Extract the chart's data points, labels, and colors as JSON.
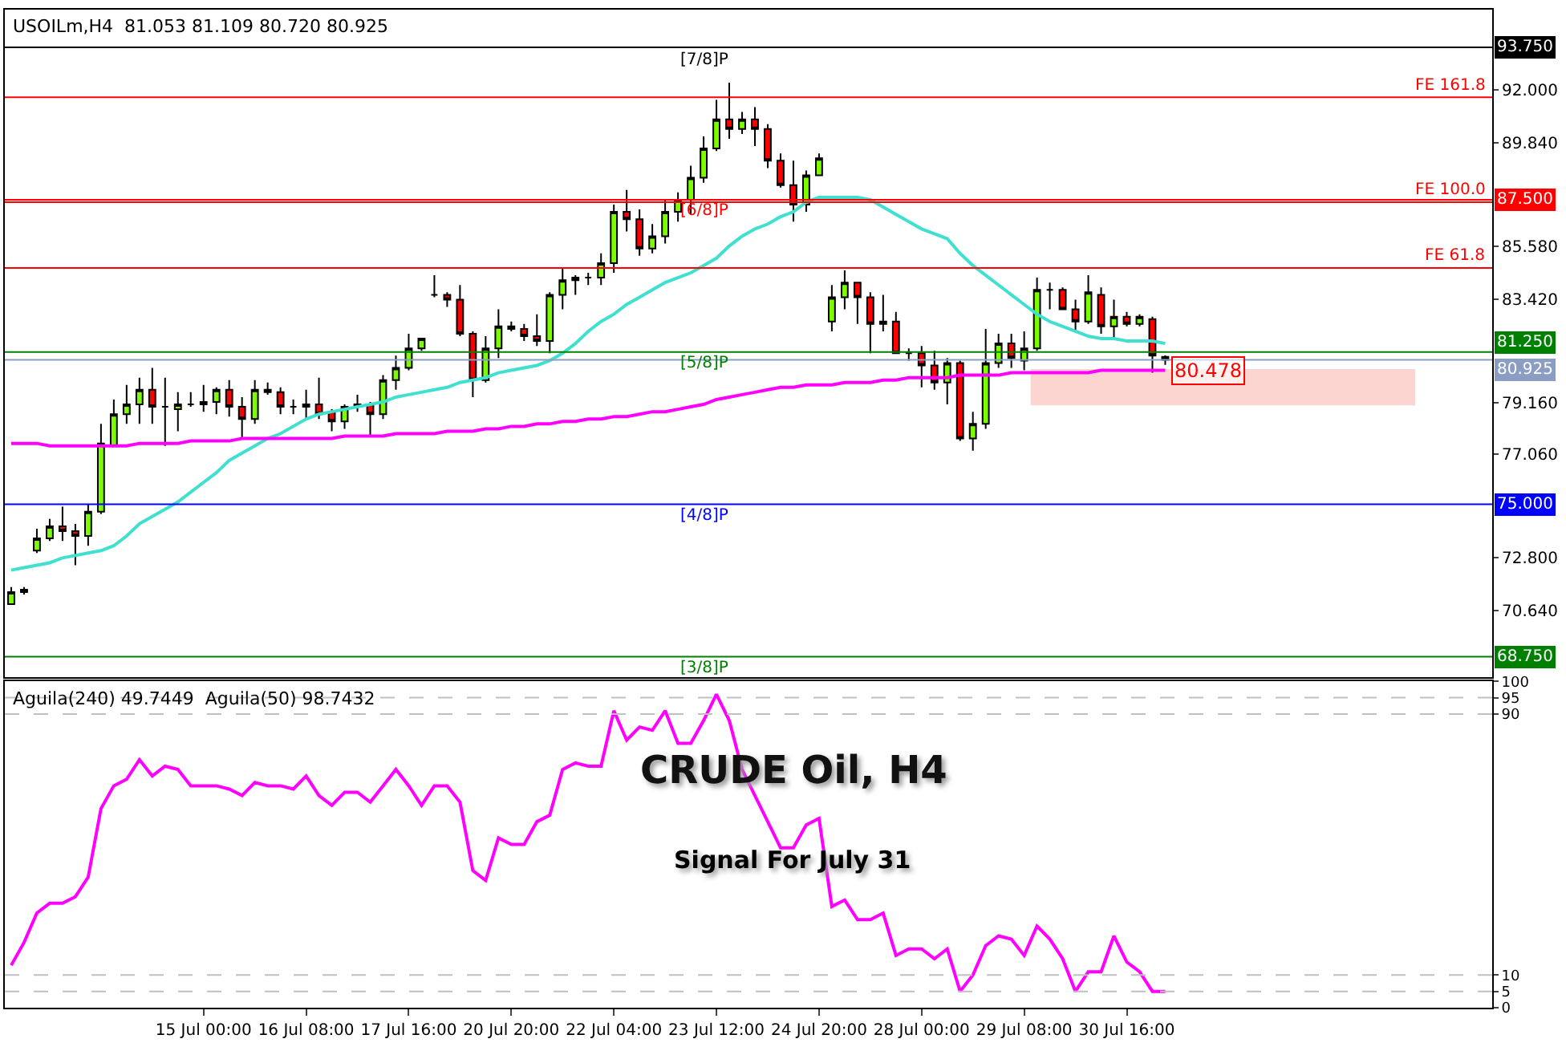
{
  "chart_data": [
    {
      "type": "candlestick",
      "categories": [
        null,
        null,
        null,
        null,
        null,
        null,
        null,
        null,
        null,
        null,
        null,
        null,
        null,
        null,
        null,
        null,
        null,
        null,
        null,
        null,
        null,
        null,
        null,
        null,
        null,
        null,
        null,
        null,
        null,
        null,
        null,
        null,
        null,
        null,
        null,
        null,
        null,
        null,
        null,
        null,
        null,
        null,
        null,
        null,
        null,
        null,
        null,
        null,
        null,
        null,
        null,
        null,
        null,
        null,
        null,
        null,
        null,
        null,
        null,
        null,
        null,
        null,
        null,
        null,
        null,
        null,
        null,
        null,
        null,
        null,
        null,
        null,
        null,
        null,
        null,
        null,
        null,
        null,
        null,
        null,
        null,
        null,
        null,
        null,
        null,
        null,
        null,
        null,
        null,
        null,
        null
      ],
      "ohlc": [
        [
          70.9,
          71.6,
          70.9,
          71.4
        ],
        [
          71.5,
          71.6,
          71.3,
          71.4
        ],
        [
          73.1,
          74.0,
          73.0,
          73.6
        ],
        [
          73.6,
          74.4,
          73.5,
          74.1
        ],
        [
          74.1,
          74.9,
          73.5,
          73.9
        ],
        [
          73.9,
          74.2,
          72.5,
          73.7
        ],
        [
          73.7,
          75.0,
          73.3,
          74.7
        ],
        [
          74.7,
          78.3,
          74.6,
          77.5
        ],
        [
          77.4,
          79.3,
          77.4,
          78.7
        ],
        [
          78.7,
          79.9,
          78.3,
          79.1
        ],
        [
          79.1,
          80.2,
          78.3,
          79.7
        ],
        [
          79.7,
          80.6,
          78.3,
          79.0
        ],
        [
          79.0,
          80.2,
          77.4,
          79.0
        ],
        [
          78.9,
          79.6,
          78.0,
          79.1
        ],
        [
          79.1,
          79.6,
          79.0,
          79.1
        ],
        [
          79.2,
          79.9,
          78.8,
          79.1
        ],
        [
          79.2,
          79.8,
          78.7,
          79.7
        ],
        [
          79.7,
          80.1,
          78.6,
          79.0
        ],
        [
          79.0,
          79.4,
          77.7,
          78.5
        ],
        [
          78.5,
          80.1,
          78.3,
          79.7
        ],
        [
          79.7,
          80.0,
          79.5,
          79.6
        ],
        [
          79.6,
          79.8,
          78.7,
          79.0
        ],
        [
          79.0,
          79.3,
          78.7,
          79.0
        ],
        [
          79.0,
          79.7,
          78.5,
          79.1
        ],
        [
          79.1,
          80.2,
          78.5,
          78.7
        ],
        [
          78.8,
          78.9,
          78.0,
          78.4
        ],
        [
          78.4,
          79.1,
          78.1,
          79.0
        ],
        [
          79.0,
          79.5,
          78.8,
          79.1
        ],
        [
          79.1,
          79.2,
          77.8,
          78.7
        ],
        [
          78.7,
          80.3,
          78.5,
          80.1
        ],
        [
          80.1,
          81.1,
          79.7,
          80.6
        ],
        [
          80.6,
          82.0,
          80.5,
          81.4
        ],
        [
          81.4,
          81.8,
          81.3,
          81.8
        ],
        [
          83.6,
          84.4,
          83.5,
          83.6
        ],
        [
          83.6,
          83.7,
          83.1,
          83.4
        ],
        [
          83.4,
          84.0,
          81.9,
          82.0
        ],
        [
          82.0,
          82.1,
          79.4,
          80.1
        ],
        [
          80.1,
          81.9,
          80.0,
          81.4
        ],
        [
          81.4,
          83.0,
          81.0,
          82.3
        ],
        [
          82.2,
          82.5,
          82.1,
          82.3
        ],
        [
          82.2,
          82.4,
          81.7,
          81.9
        ],
        [
          81.9,
          82.8,
          81.5,
          81.7
        ],
        [
          81.7,
          83.7,
          81.2,
          83.6
        ],
        [
          83.6,
          84.7,
          83.0,
          84.2
        ],
        [
          84.2,
          84.4,
          83.6,
          84.3
        ],
        [
          84.3,
          84.5,
          84.0,
          84.3
        ],
        [
          84.3,
          85.3,
          84.0,
          84.9
        ],
        [
          84.9,
          87.3,
          84.5,
          87.0
        ],
        [
          87.0,
          87.9,
          86.2,
          86.7
        ],
        [
          86.7,
          87.1,
          85.2,
          85.5
        ],
        [
          85.5,
          86.5,
          85.3,
          86.0
        ],
        [
          86.0,
          87.5,
          85.7,
          87.0
        ],
        [
          87.0,
          87.8,
          86.6,
          87.5
        ],
        [
          87.5,
          88.9,
          86.9,
          88.4
        ],
        [
          88.4,
          90.1,
          88.2,
          89.6
        ],
        [
          89.6,
          91.6,
          89.5,
          90.8
        ],
        [
          90.8,
          92.3,
          90.0,
          90.4
        ],
        [
          90.4,
          91.1,
          90.2,
          90.8
        ],
        [
          90.8,
          91.3,
          89.7,
          90.4
        ],
        [
          90.4,
          90.6,
          88.8,
          89.1
        ],
        [
          89.1,
          89.4,
          88.0,
          88.1
        ],
        [
          88.1,
          89.1,
          86.6,
          87.3
        ],
        [
          87.3,
          88.7,
          87.0,
          88.5
        ],
        [
          88.5,
          89.4,
          88.5,
          89.2
        ],
        [
          82.5,
          84.0,
          82.1,
          83.5
        ],
        [
          83.5,
          84.6,
          83.0,
          84.1
        ],
        [
          84.1,
          84.1,
          82.4,
          83.5
        ],
        [
          83.5,
          83.7,
          81.2,
          82.4
        ],
        [
          82.5,
          83.6,
          82.1,
          82.4
        ],
        [
          82.5,
          82.9,
          81.2,
          81.2
        ],
        [
          81.2,
          81.4,
          80.9,
          81.2
        ],
        [
          81.2,
          81.5,
          79.8,
          80.7
        ],
        [
          80.7,
          81.3,
          79.7,
          80.0
        ],
        [
          80.0,
          81.0,
          79.1,
          80.8
        ],
        [
          80.8,
          80.9,
          77.6,
          77.7
        ],
        [
          77.7,
          78.8,
          77.2,
          78.3
        ],
        [
          78.3,
          82.2,
          78.1,
          80.8
        ],
        [
          80.8,
          82.0,
          80.6,
          81.6
        ],
        [
          81.6,
          82.0,
          80.6,
          81.0
        ],
        [
          80.9,
          82.1,
          80.5,
          81.4
        ],
        [
          81.4,
          84.3,
          81.3,
          83.8
        ],
        [
          83.8,
          84.1,
          83.0,
          83.8
        ],
        [
          83.8,
          83.9,
          83.0,
          83.0
        ],
        [
          83.0,
          83.4,
          82.1,
          82.5
        ],
        [
          82.5,
          84.4,
          82.4,
          83.7
        ],
        [
          83.6,
          83.9,
          82.0,
          82.3
        ],
        [
          82.3,
          83.4,
          81.8,
          82.7
        ],
        [
          82.7,
          82.9,
          82.3,
          82.4
        ],
        [
          82.4,
          82.8,
          82.3,
          82.7
        ],
        [
          82.6,
          82.7,
          80.4,
          81.1
        ],
        [
          81.053,
          81.109,
          80.72,
          80.925
        ]
      ],
      "series": [
        {
          "type": "line",
          "color": "#40e0d0",
          "values": [
            72.3,
            72.4,
            72.5,
            72.6,
            72.8,
            72.9,
            73.0,
            73.1,
            73.3,
            73.7,
            74.2,
            74.5,
            74.8,
            75.1,
            75.5,
            75.9,
            76.3,
            76.8,
            77.1,
            77.4,
            77.7,
            77.9,
            78.2,
            78.5,
            78.7,
            78.8,
            78.9,
            79.0,
            79.1,
            79.2,
            79.4,
            79.5,
            79.6,
            79.7,
            79.8,
            80.0,
            80.1,
            80.2,
            80.4,
            80.5,
            80.6,
            80.7,
            80.9,
            81.2,
            81.6,
            82.1,
            82.5,
            82.8,
            83.2,
            83.5,
            83.8,
            84.1,
            84.3,
            84.5,
            84.8,
            85.1,
            85.6,
            86.0,
            86.3,
            86.5,
            86.8,
            87.0,
            87.4,
            87.6,
            87.6,
            87.6,
            87.6,
            87.5,
            87.2,
            86.9,
            86.6,
            86.3,
            86.1,
            85.9,
            85.3,
            84.8,
            84.4,
            84.0,
            83.6,
            83.2,
            82.8,
            82.5,
            82.3,
            82.1,
            81.9,
            81.8,
            81.8,
            81.7,
            81.7,
            81.7,
            81.6
          ]
        },
        {
          "type": "line",
          "color": "#ff00ff",
          "values": [
            77.5,
            77.5,
            77.5,
            77.4,
            77.4,
            77.4,
            77.4,
            77.4,
            77.4,
            77.4,
            77.5,
            77.5,
            77.5,
            77.5,
            77.6,
            77.6,
            77.6,
            77.6,
            77.7,
            77.7,
            77.7,
            77.7,
            77.7,
            77.7,
            77.7,
            77.7,
            77.8,
            77.8,
            77.8,
            77.8,
            77.9,
            77.9,
            77.9,
            77.9,
            78.0,
            78.0,
            78.0,
            78.1,
            78.1,
            78.2,
            78.2,
            78.3,
            78.3,
            78.4,
            78.4,
            78.5,
            78.5,
            78.6,
            78.6,
            78.7,
            78.8,
            78.8,
            78.9,
            79.0,
            79.1,
            79.3,
            79.4,
            79.5,
            79.6,
            79.7,
            79.8,
            79.8,
            79.9,
            79.9,
            79.9,
            80.0,
            80.0,
            80.0,
            80.1,
            80.1,
            80.2,
            80.2,
            80.2,
            80.2,
            80.3,
            80.3,
            80.3,
            80.3,
            80.4,
            80.4,
            80.4,
            80.4,
            80.4,
            80.4,
            80.4,
            80.5,
            80.5,
            80.5,
            80.5,
            80.5,
            80.5
          ]
        }
      ],
      "ylim": [
        67.9,
        95.3
      ],
      "yticks": [
        {
          "value": 92,
          "label": "92.000"
        },
        {
          "value": 89.84,
          "label": "89.840"
        },
        {
          "value": 85.58,
          "label": "85.580"
        },
        {
          "value": 83.42,
          "label": "83.420"
        },
        {
          "value": 79.16,
          "label": "79.160"
        },
        {
          "value": 77.06,
          "label": "77.060"
        },
        {
          "value": 72.8,
          "label": "72.800"
        },
        {
          "value": 70.64,
          "label": "70.640"
        }
      ],
      "ref_lines": [
        {
          "axis": "y",
          "value": 93.75,
          "label": "93.750",
          "color": "#000000"
        },
        {
          "axis": "y",
          "value": 87.5,
          "label": "87.500",
          "color": "#ff0000"
        },
        {
          "axis": "y",
          "value": 81.25,
          "label": "81.250",
          "color": "#008000"
        },
        {
          "axis": "y",
          "value": 80.925,
          "label": "80.925",
          "color": "#8c9dc4"
        },
        {
          "axis": "y",
          "value": 75,
          "label": "75.000",
          "color": "#0000ff"
        },
        {
          "axis": "y",
          "value": 68.75,
          "label": "68.750",
          "color": "#008000"
        },
        {
          "axis": "y",
          "value": 91.7,
          "color": "#ff0000"
        },
        {
          "axis": "y",
          "value": 87.4,
          "color": "#ff0000"
        },
        {
          "axis": "y",
          "value": 84.7,
          "color": "#ff0000"
        }
      ],
      "bands": [
        {
          "axis": "y",
          "from": 79.06,
          "to": 80.55,
          "color": "#fcd5d0"
        }
      ],
      "annotations": [
        "USOILm,H4  81.053 81.109 80.720 80.925",
        {
          "text": "[7/8]P",
          "y": 93.75
        },
        {
          "text": "[6/8]P",
          "y": 87.5
        },
        {
          "text": "[5/8]P",
          "y": 81.25
        },
        {
          "text": "[4/8]P",
          "y": 75
        },
        {
          "text": "[3/8]P",
          "y": 68.75
        },
        {
          "text": "FE 161.8",
          "y": 91.7
        },
        {
          "text": "FE 100.0",
          "y": 87.4
        },
        {
          "text": "FE 61.8",
          "y": 84.7
        },
        {
          "text": "80.478",
          "y": 80.478
        }
      ],
      "tick_labels": "y"
    },
    {
      "type": "line",
      "title": "CRUDE Oil, H4",
      "subtitle": "Signal For July 31",
      "categories": [
        null,
        null,
        null,
        null,
        null,
        null,
        null,
        null,
        null,
        null,
        null,
        null,
        null,
        null,
        null,
        "15 Jul 00:00",
        null,
        null,
        null,
        null,
        null,
        null,
        null,
        "16 Jul 08:00",
        null,
        null,
        null,
        null,
        null,
        null,
        null,
        "17 Jul 16:00",
        null,
        null,
        null,
        null,
        null,
        null,
        null,
        "20 Jul 20:00",
        null,
        null,
        null,
        null,
        null,
        null,
        null,
        "22 Jul 04:00",
        null,
        null,
        null,
        null,
        null,
        null,
        null,
        "23 Jul 12:00",
        null,
        null,
        null,
        null,
        null,
        null,
        null,
        "24 Jul 20:00",
        null,
        null,
        null,
        null,
        null,
        null,
        null,
        "28 Jul 00:00",
        null,
        null,
        null,
        null,
        null,
        null,
        null,
        "29 Jul 08:00",
        null,
        null,
        null,
        null,
        null,
        null,
        null,
        "30 Jul 16:00",
        null,
        null,
        null
      ],
      "series": [
        {
          "color": "#ff00ff",
          "values": [
            13,
            20,
            29,
            32,
            32,
            34,
            40,
            61,
            68,
            70,
            76,
            71,
            74,
            73,
            68,
            68,
            68,
            67,
            65,
            69,
            68,
            68,
            67,
            71,
            65,
            62,
            66,
            66,
            63,
            68,
            73,
            68,
            62,
            68,
            68,
            63,
            42,
            39,
            52,
            50,
            50,
            57,
            59,
            73,
            75,
            74,
            74,
            91,
            82,
            86,
            85,
            91,
            81,
            81,
            88,
            96,
            88,
            73,
            65,
            57,
            49,
            49,
            56,
            58,
            31,
            33,
            27,
            27,
            29,
            16,
            18,
            18,
            15,
            18,
            5,
            10,
            19,
            22,
            21,
            16,
            25,
            21,
            15,
            5,
            11,
            11,
            22,
            14,
            11,
            5,
            5
          ]
        }
      ],
      "ylim": [
        0,
        100
      ],
      "yticks": [
        0,
        5,
        10,
        90,
        95,
        100
      ],
      "ref_lines": [
        {
          "axis": "y",
          "value": 95,
          "color": "#c0c0c0",
          "line_style": "dashed"
        },
        {
          "axis": "y",
          "value": 90,
          "color": "#c0c0c0",
          "line_style": "dashed"
        },
        {
          "axis": "y",
          "value": 10,
          "color": "#c0c0c0",
          "line_style": "dashed"
        },
        {
          "axis": "y",
          "value": 5,
          "color": "#c0c0c0",
          "line_style": "dashed"
        }
      ],
      "annotations": [
        "Aguila(240) 49.7449  Aguila(50) 98.7432"
      ]
    }
  ]
}
